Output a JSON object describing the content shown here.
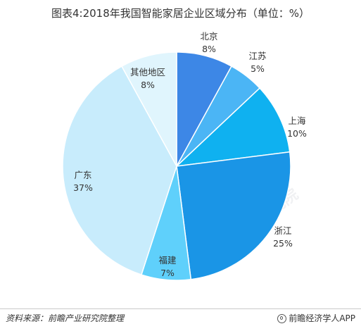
{
  "title": "图表4:2018年我国智能家居企业区域分布（单位：%）",
  "chart_data": {
    "type": "pie",
    "title": "图表4:2018年我国智能家居企业区域分布（单位：%）",
    "unit": "%",
    "start_angle_deg": 0,
    "direction": "clockwise",
    "slices": [
      {
        "label": "北京",
        "value": 8,
        "display": "8%",
        "color": "#3d87e6"
      },
      {
        "label": "江苏",
        "value": 5,
        "display": "5%",
        "color": "#4bb5f5"
      },
      {
        "label": "上海",
        "value": 10,
        "display": "10%",
        "color": "#0fb1f0"
      },
      {
        "label": "浙江",
        "value": 25,
        "display": "25%",
        "color": "#1a95e6"
      },
      {
        "label": "福建",
        "value": 7,
        "display": "7%",
        "color": "#5fd0fb"
      },
      {
        "label": "广东",
        "value": 37,
        "display": "37%",
        "color": "#c8ecfc"
      },
      {
        "label": "其他地区",
        "value": 8,
        "display": "8%",
        "color": "#e0f5fd"
      }
    ]
  },
  "footer": {
    "source": "资料来源：前瞻产业研究院整理",
    "brand": "前瞻经济学人APP"
  },
  "watermark": "前瞻产业研究院"
}
